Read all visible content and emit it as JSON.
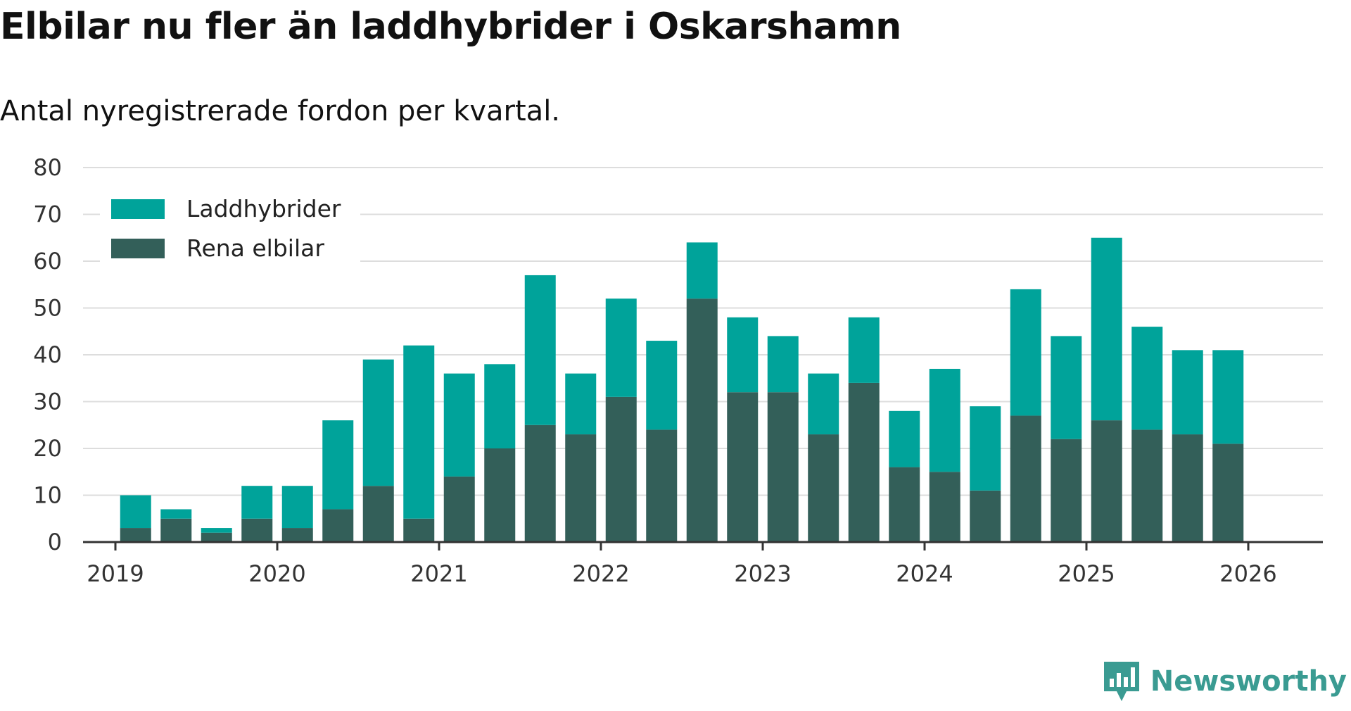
{
  "title": "Elbilar nu fler än laddhybrider i Oskarshamn",
  "subtitle": "Antal nyregistrerade fordon per kvartal.",
  "brand": {
    "name": "Newsworthy",
    "icon": "newsworthy-logo-icon"
  },
  "colors": {
    "phev": "#00a39a",
    "bev": "#335f59",
    "grid": "#dddddd",
    "axis": "#333333"
  },
  "chart_data": {
    "type": "bar",
    "stacked": true,
    "ylim": [
      0,
      80
    ],
    "y_ticks": [
      0,
      10,
      20,
      30,
      40,
      50,
      60,
      70,
      80
    ],
    "x_ticks": [
      "2019",
      "2020",
      "2021",
      "2022",
      "2023",
      "2024",
      "2025",
      "2026"
    ],
    "grid": true,
    "legend_position": "top-left",
    "categories": [
      "2019-Q1",
      "2019-Q2",
      "2019-Q3",
      "2019-Q4",
      "2020-Q1",
      "2020-Q2",
      "2020-Q3",
      "2020-Q4",
      "2021-Q1",
      "2021-Q2",
      "2021-Q3",
      "2021-Q4",
      "2022-Q1",
      "2022-Q2",
      "2022-Q3",
      "2022-Q4",
      "2023-Q1",
      "2023-Q2",
      "2023-Q3",
      "2023-Q4",
      "2024-Q1",
      "2024-Q2",
      "2024-Q3",
      "2024-Q4",
      "2025-Q1",
      "2025-Q2",
      "2025-Q3",
      "2025-Q4"
    ],
    "series": [
      {
        "name": "Rena elbilar",
        "color": "#335f59",
        "values": [
          3,
          5,
          2,
          5,
          3,
          7,
          12,
          5,
          14,
          20,
          25,
          23,
          31,
          24,
          52,
          32,
          32,
          23,
          34,
          16,
          15,
          11,
          27,
          22,
          26,
          24,
          23,
          21
        ]
      },
      {
        "name": "Laddhybrider",
        "color": "#00a39a",
        "values": [
          7,
          2,
          1,
          7,
          9,
          19,
          27,
          37,
          22,
          18,
          32,
          13,
          21,
          19,
          12,
          16,
          12,
          13,
          14,
          12,
          22,
          18,
          27,
          22,
          39,
          22,
          18,
          20
        ]
      }
    ]
  }
}
